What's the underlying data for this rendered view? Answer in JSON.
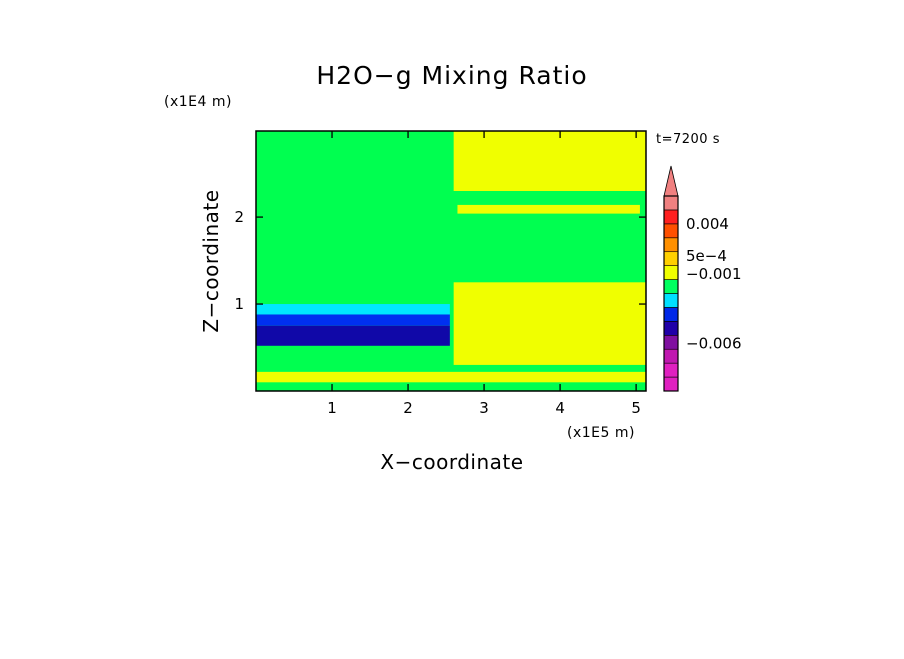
{
  "chart_data": {
    "type": "heatmap",
    "title": "H2O−g Mixing Ratio",
    "xlabel": "X−coordinate",
    "ylabel": "Z−coordinate",
    "x_scale_label": "(x1E5 m)",
    "y_scale_label": "(x1E4 m)",
    "time_label": "t=7200 s",
    "xlim": [
      0,
      5.13
    ],
    "ylim": [
      0,
      2.99
    ],
    "x_ticks": [
      {
        "value": 1,
        "label": "1"
      },
      {
        "value": 2,
        "label": "2"
      },
      {
        "value": 3,
        "label": "3"
      },
      {
        "value": 4,
        "label": "4"
      },
      {
        "value": 5,
        "label": "5"
      }
    ],
    "y_ticks": [
      {
        "value": 1,
        "label": "1"
      },
      {
        "value": 2,
        "label": "2"
      }
    ],
    "colorbar": {
      "levels": [
        {
          "color": "#e020c0"
        },
        {
          "color": "#e020c0"
        },
        {
          "color": "#c018b0"
        },
        {
          "color": "#8010a0"
        },
        {
          "color": "#2000a8"
        },
        {
          "color": "#0028e8"
        },
        {
          "color": "#00e0ff"
        },
        {
          "color": "#00ff60"
        },
        {
          "color": "#f0ff00"
        },
        {
          "color": "#ffd000"
        },
        {
          "color": "#ff9000"
        },
        {
          "color": "#ff5000"
        },
        {
          "color": "#ff2020"
        },
        {
          "color": "#f08080"
        }
      ],
      "labels": [
        {
          "text": "0.004",
          "level_index": 12
        },
        {
          "text": "5e−4",
          "level_index": 9.7
        },
        {
          "text": "−0.001",
          "level_index": 8.4
        },
        {
          "text": "−0.006",
          "level_index": 3.4
        }
      ]
    },
    "regions": [
      {
        "name": "background",
        "color": "#00ff50",
        "x": [
          0,
          5.13
        ],
        "z": [
          0,
          2.99
        ]
      },
      {
        "name": "lower-left-cyan",
        "color": "#00e8ff",
        "x": [
          0,
          2.55
        ],
        "z": [
          0.88,
          1.0
        ]
      },
      {
        "name": "lower-left-blue",
        "color": "#0030f0",
        "x": [
          0,
          2.55
        ],
        "z": [
          0.75,
          0.88
        ]
      },
      {
        "name": "lower-left-navy",
        "color": "#1008a8",
        "x": [
          0,
          2.55
        ],
        "z": [
          0.52,
          0.75
        ]
      },
      {
        "name": "right-lower-yellow",
        "color": "#f0ff00",
        "x": [
          2.6,
          5.13
        ],
        "z": [
          0.3,
          1.25
        ]
      },
      {
        "name": "right-upper-yellow",
        "color": "#f0ff00",
        "x": [
          2.6,
          5.13
        ],
        "z": [
          2.3,
          2.99
        ]
      },
      {
        "name": "mid-band-yellow",
        "color": "#f0ff00",
        "x": [
          2.65,
          5.05
        ],
        "z": [
          2.04,
          2.14
        ]
      },
      {
        "name": "near-surface-yellow",
        "color": "#f0ff00",
        "x": [
          0,
          5.13
        ],
        "z": [
          0.1,
          0.22
        ]
      }
    ]
  }
}
